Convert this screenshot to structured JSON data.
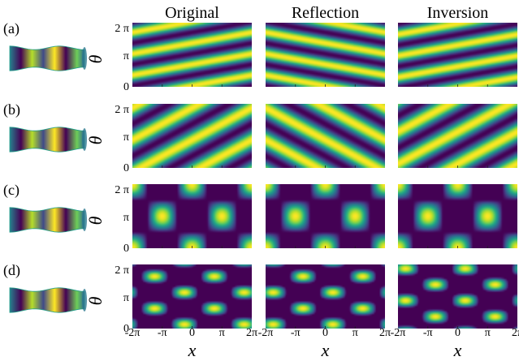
{
  "figure": {
    "column_titles": [
      "Original",
      "Reflection",
      "Inversion"
    ],
    "row_labels": [
      "(a)",
      "(b)",
      "(c)",
      "(d)"
    ],
    "y_axis_label": "θ",
    "y_ticks": [
      "2 π",
      "π",
      "0"
    ],
    "x_axis_label": "x",
    "x_ticks": [
      "-2π",
      "-π",
      "0",
      "π",
      "2π"
    ],
    "colors": {
      "colormap": [
        "#440154",
        "#482878",
        "#3e4989",
        "#31688e",
        "#26828e",
        "#1f9e89",
        "#35b779",
        "#6ece58",
        "#b5de2b",
        "#fde725"
      ],
      "tube_outline": "#1f9e89"
    }
  }
}
